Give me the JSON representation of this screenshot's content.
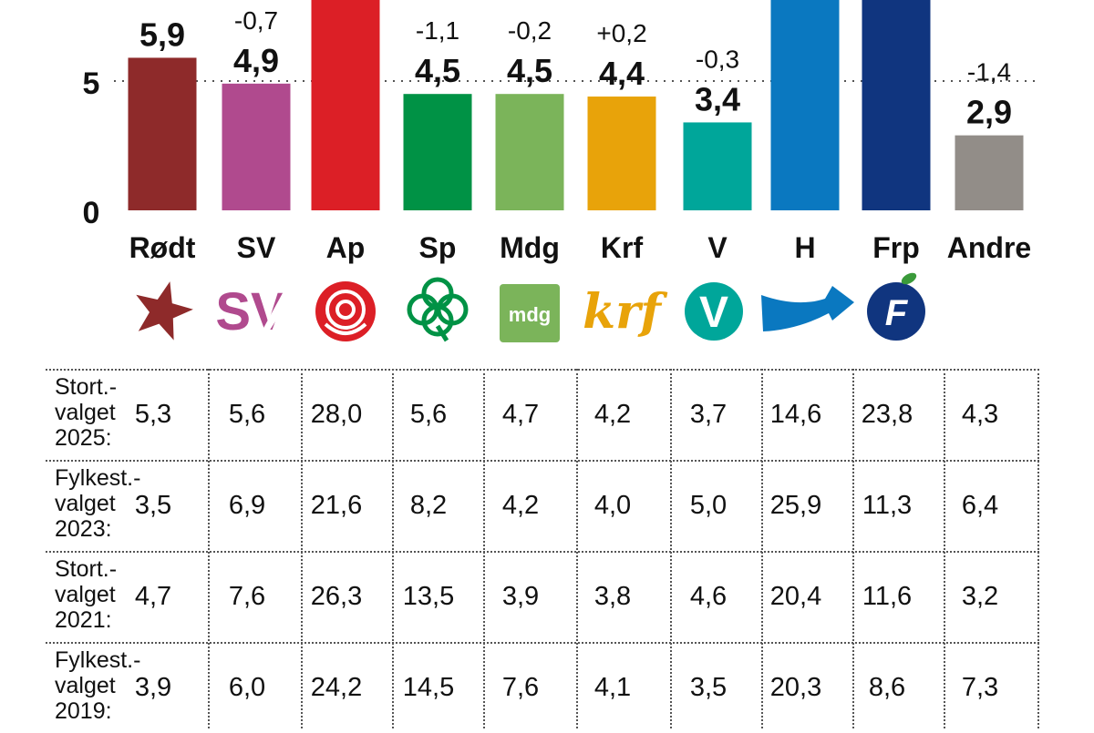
{
  "chart_data": {
    "type": "bar",
    "categories": [
      "Rødt",
      "SV",
      "Ap",
      "Sp",
      "Mdg",
      "Krf",
      "V",
      "H",
      "Frp",
      "Andre"
    ],
    "values": [
      5.9,
      4.9,
      null,
      4.5,
      4.5,
      4.4,
      3.4,
      null,
      null,
      2.9
    ],
    "value_labels": [
      "5,9",
      "4,9",
      "",
      "4,5",
      "4,5",
      "4,4",
      "3,4",
      "",
      "",
      "2,9"
    ],
    "change_labels": [
      "",
      "-0,7",
      "",
      "-1,1",
      "-0,2",
      "+0,2",
      "-0,3",
      "",
      "",
      "-1,4"
    ],
    "colors": [
      "#8e2a2a",
      "#b04a8e",
      "#dc1f26",
      "#009245",
      "#7bb45a",
      "#e8a30a",
      "#00a69a",
      "#0a78c0",
      "#10357f",
      "#928d88"
    ],
    "logos": [
      "rodt-star-icon",
      "sv-logo-icon",
      "ap-rose-icon",
      "sp-clover-icon",
      "mdg-logo-icon",
      "krf-logo-icon",
      "v-logo-icon",
      "h-arrow-icon",
      "frp-apple-icon",
      ""
    ],
    "logo_texts": {
      "sv": "SV",
      "mdg": "mdg",
      "krf": "krf",
      "v": "V",
      "frp": "F"
    },
    "yticks": [
      "0",
      "5"
    ],
    "ylim": [
      0,
      7.8
    ],
    "grid": "dotted line at 5"
  },
  "table": {
    "rows": [
      {
        "label": "Stort.-\nvalget\n2025:",
        "values": [
          "5,3",
          "5,6",
          "28,0",
          "5,6",
          "4,7",
          "4,2",
          "3,7",
          "14,6",
          "23,8",
          "4,3"
        ]
      },
      {
        "label": "Fylkest.-\nvalget\n2023:",
        "values": [
          "3,5",
          "6,9",
          "21,6",
          "8,2",
          "4,2",
          "4,0",
          "5,0",
          "25,9",
          "11,3",
          "6,4"
        ]
      },
      {
        "label": "Stort.-\nvalget\n2021:",
        "values": [
          "4,7",
          "7,6",
          "26,3",
          "13,5",
          "3,9",
          "3,8",
          "4,6",
          "20,4",
          "11,6",
          "3,2"
        ]
      },
      {
        "label": "Fylkest.-\nvalget\n2019:",
        "values": [
          "3,9",
          "6,0",
          "24,2",
          "14,5",
          "7,6",
          "4,1",
          "3,5",
          "20,3",
          "8,6",
          "7,3"
        ]
      }
    ]
  }
}
